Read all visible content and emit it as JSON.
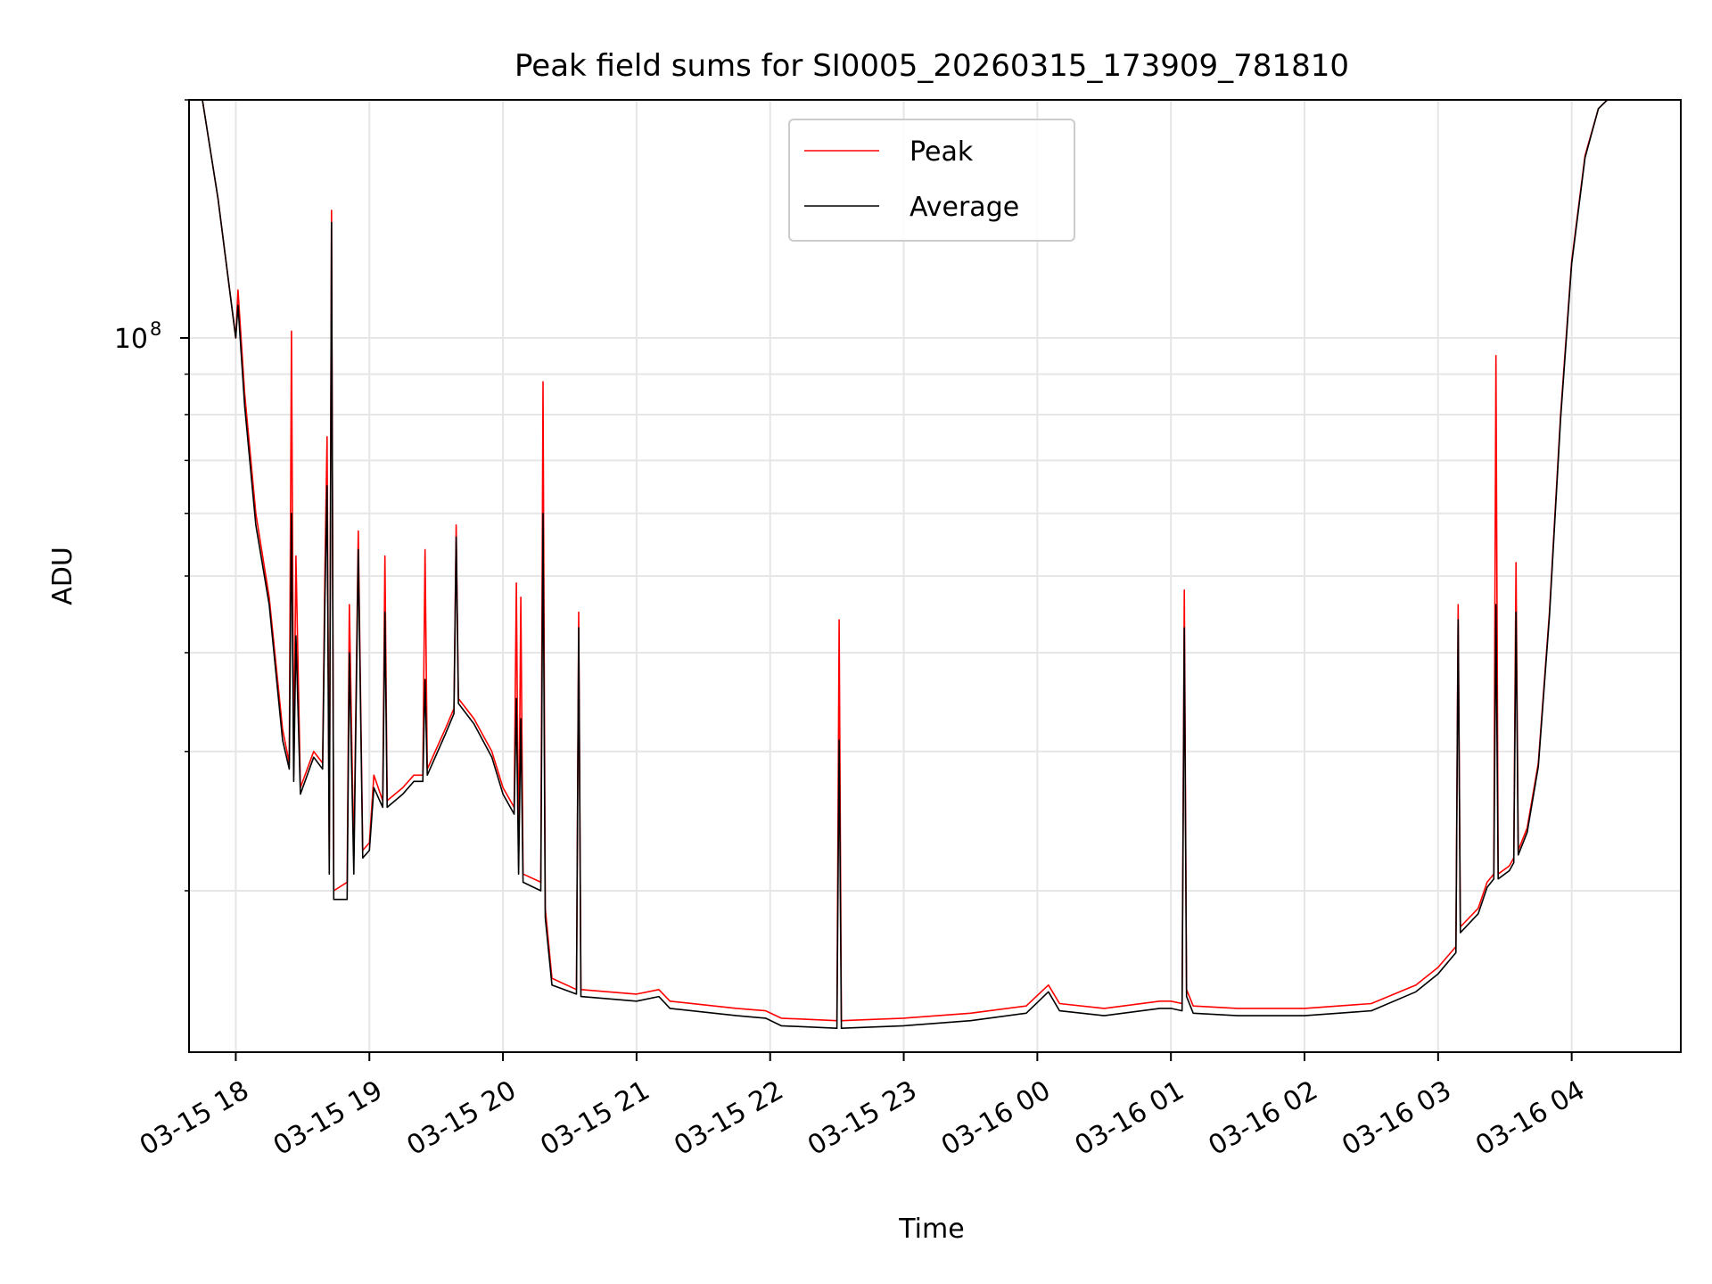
{
  "chart_data": {
    "type": "line",
    "title": "Peak field sums for SI0005_20260315_173909_781810",
    "xlabel": "Time",
    "ylabel": "ADU",
    "y_scale": "log",
    "ylim": [
      12500000,
      200000000
    ],
    "xlim": [
      "2026-03-15 17:39",
      "2026-03-16 04:49"
    ],
    "grid": true,
    "legend_position": "top-center",
    "x_ticks": [
      {
        "t": "2026-03-15 18:00",
        "label": "03-15 18"
      },
      {
        "t": "2026-03-15 19:00",
        "label": "03-15 19"
      },
      {
        "t": "2026-03-15 20:00",
        "label": "03-15 20"
      },
      {
        "t": "2026-03-15 21:00",
        "label": "03-15 21"
      },
      {
        "t": "2026-03-15 22:00",
        "label": "03-15 22"
      },
      {
        "t": "2026-03-15 23:00",
        "label": "03-15 23"
      },
      {
        "t": "2026-03-16 00:00",
        "label": "03-16 00"
      },
      {
        "t": "2026-03-16 01:00",
        "label": "03-16 01"
      },
      {
        "t": "2026-03-16 02:00",
        "label": "03-16 02"
      },
      {
        "t": "2026-03-16 03:00",
        "label": "03-16 03"
      },
      {
        "t": "2026-03-16 04:00",
        "label": "03-16 04"
      }
    ],
    "y_ticks": [
      {
        "value": 100000000,
        "label": "10",
        "exponent": "8"
      }
    ],
    "series": [
      {
        "name": "Peak",
        "color": "#ff0000",
        "points": [
          [
            "2026-03-15 17:45",
            200000000
          ],
          [
            "2026-03-15 17:52",
            150000000
          ],
          [
            "2026-03-15 18:00",
            100000000
          ],
          [
            "2026-03-15 18:01",
            115000000
          ],
          [
            "2026-03-15 18:04",
            85000000
          ],
          [
            "2026-03-15 18:09",
            60000000
          ],
          [
            "2026-03-15 18:15",
            47000000
          ],
          [
            "2026-03-15 18:21",
            32000000
          ],
          [
            "2026-03-15 18:24",
            29000000
          ],
          [
            "2026-03-15 18:25",
            102000000
          ],
          [
            "2026-03-15 18:26",
            28000000
          ],
          [
            "2026-03-15 18:27",
            53000000
          ],
          [
            "2026-03-15 18:29",
            27000000
          ],
          [
            "2026-03-15 18:35",
            30000000
          ],
          [
            "2026-03-15 18:39",
            29000000
          ],
          [
            "2026-03-15 18:40",
            50000000
          ],
          [
            "2026-03-15 18:41",
            75000000
          ],
          [
            "2026-03-15 18:42",
            22000000
          ],
          [
            "2026-03-15 18:43",
            145000000
          ],
          [
            "2026-03-15 18:44",
            20000000
          ],
          [
            "2026-03-15 18:50",
            20500000
          ],
          [
            "2026-03-15 18:51",
            46000000
          ],
          [
            "2026-03-15 18:53",
            22000000
          ],
          [
            "2026-03-15 18:55",
            57000000
          ],
          [
            "2026-03-15 18:57",
            22500000
          ],
          [
            "2026-03-15 19:00",
            23000000
          ],
          [
            "2026-03-15 19:02",
            28000000
          ],
          [
            "2026-03-15 19:06",
            26000000
          ],
          [
            "2026-03-15 19:07",
            53000000
          ],
          [
            "2026-03-15 19:08",
            26000000
          ],
          [
            "2026-03-15 19:15",
            27000000
          ],
          [
            "2026-03-15 19:20",
            28000000
          ],
          [
            "2026-03-15 19:24",
            28000000
          ],
          [
            "2026-03-15 19:25",
            54000000
          ],
          [
            "2026-03-15 19:26",
            28500000
          ],
          [
            "2026-03-15 19:34",
            32000000
          ],
          [
            "2026-03-15 19:38",
            34000000
          ],
          [
            "2026-03-15 19:39",
            58000000
          ],
          [
            "2026-03-15 19:40",
            35000000
          ],
          [
            "2026-03-15 19:47",
            33000000
          ],
          [
            "2026-03-15 19:55",
            30000000
          ],
          [
            "2026-03-15 20:00",
            27000000
          ],
          [
            "2026-03-15 20:05",
            25500000
          ],
          [
            "2026-03-15 20:06",
            49000000
          ],
          [
            "2026-03-15 20:07",
            21500000
          ],
          [
            "2026-03-15 20:08",
            47000000
          ],
          [
            "2026-03-15 20:09",
            21000000
          ],
          [
            "2026-03-15 20:17",
            20500000
          ],
          [
            "2026-03-15 20:18",
            88000000
          ],
          [
            "2026-03-15 20:19",
            19000000
          ],
          [
            "2026-03-15 20:22",
            15500000
          ],
          [
            "2026-03-15 20:33",
            15000000
          ],
          [
            "2026-03-15 20:34",
            45000000
          ],
          [
            "2026-03-15 20:35",
            15000000
          ],
          [
            "2026-03-15 21:00",
            14800000
          ],
          [
            "2026-03-15 21:10",
            15000000
          ],
          [
            "2026-03-15 21:15",
            14500000
          ],
          [
            "2026-03-15 21:45",
            14200000
          ],
          [
            "2026-03-15 21:58",
            14100000
          ],
          [
            "2026-03-15 22:05",
            13800000
          ],
          [
            "2026-03-15 22:30",
            13700000
          ],
          [
            "2026-03-15 22:31",
            44000000
          ],
          [
            "2026-03-15 22:32",
            13700000
          ],
          [
            "2026-03-15 23:00",
            13800000
          ],
          [
            "2026-03-15 23:30",
            14000000
          ],
          [
            "2026-03-15 23:55",
            14300000
          ],
          [
            "2026-03-16 00:05",
            15200000
          ],
          [
            "2026-03-16 00:10",
            14400000
          ],
          [
            "2026-03-16 00:30",
            14200000
          ],
          [
            "2026-03-16 00:55",
            14500000
          ],
          [
            "2026-03-16 01:00",
            14500000
          ],
          [
            "2026-03-16 01:05",
            14400000
          ],
          [
            "2026-03-16 01:06",
            48000000
          ],
          [
            "2026-03-16 01:07",
            15000000
          ],
          [
            "2026-03-16 01:10",
            14300000
          ],
          [
            "2026-03-16 01:30",
            14200000
          ],
          [
            "2026-03-16 02:00",
            14200000
          ],
          [
            "2026-03-16 02:30",
            14400000
          ],
          [
            "2026-03-16 02:50",
            15200000
          ],
          [
            "2026-03-16 03:00",
            16000000
          ],
          [
            "2026-03-16 03:08",
            17000000
          ],
          [
            "2026-03-16 03:09",
            46000000
          ],
          [
            "2026-03-16 03:10",
            18000000
          ],
          [
            "2026-03-16 03:18",
            19000000
          ],
          [
            "2026-03-16 03:22",
            20500000
          ],
          [
            "2026-03-16 03:25",
            21000000
          ],
          [
            "2026-03-16 03:26",
            95000000
          ],
          [
            "2026-03-16 03:27",
            21000000
          ],
          [
            "2026-03-16 03:32",
            21500000
          ],
          [
            "2026-03-16 03:34",
            22000000
          ],
          [
            "2026-03-16 03:35",
            52000000
          ],
          [
            "2026-03-16 03:36",
            22500000
          ],
          [
            "2026-03-16 03:40",
            24000000
          ],
          [
            "2026-03-16 03:45",
            29000000
          ],
          [
            "2026-03-16 03:50",
            45000000
          ],
          [
            "2026-03-16 03:55",
            80000000
          ],
          [
            "2026-03-16 04:00",
            125000000
          ],
          [
            "2026-03-16 04:06",
            170000000
          ],
          [
            "2026-03-16 04:12",
            195000000
          ],
          [
            "2026-03-16 04:16",
            200000000
          ],
          [
            "2026-03-16 04:49",
            200000000
          ]
        ]
      },
      {
        "name": "Average",
        "color": "#000000",
        "points": [
          [
            "2026-03-15 17:45",
            200000000
          ],
          [
            "2026-03-15 17:52",
            150000000
          ],
          [
            "2026-03-15 18:00",
            100000000
          ],
          [
            "2026-03-15 18:01",
            110000000
          ],
          [
            "2026-03-15 18:04",
            82000000
          ],
          [
            "2026-03-15 18:09",
            58000000
          ],
          [
            "2026-03-15 18:15",
            46000000
          ],
          [
            "2026-03-15 18:21",
            31000000
          ],
          [
            "2026-03-15 18:24",
            28500000
          ],
          [
            "2026-03-15 18:25",
            60000000
          ],
          [
            "2026-03-15 18:26",
            27500000
          ],
          [
            "2026-03-15 18:27",
            42000000
          ],
          [
            "2026-03-15 18:29",
            26500000
          ],
          [
            "2026-03-15 18:35",
            29500000
          ],
          [
            "2026-03-15 18:39",
            28500000
          ],
          [
            "2026-03-15 18:40",
            46000000
          ],
          [
            "2026-03-15 18:41",
            65000000
          ],
          [
            "2026-03-15 18:42",
            21000000
          ],
          [
            "2026-03-15 18:43",
            140000000
          ],
          [
            "2026-03-15 18:44",
            19500000
          ],
          [
            "2026-03-15 18:50",
            19500000
          ],
          [
            "2026-03-15 18:51",
            40000000
          ],
          [
            "2026-03-15 18:53",
            21000000
          ],
          [
            "2026-03-15 18:55",
            54000000
          ],
          [
            "2026-03-15 18:57",
            22000000
          ],
          [
            "2026-03-15 19:00",
            22500000
          ],
          [
            "2026-03-15 19:02",
            27000000
          ],
          [
            "2026-03-15 19:06",
            25500000
          ],
          [
            "2026-03-15 19:07",
            45000000
          ],
          [
            "2026-03-15 19:08",
            25500000
          ],
          [
            "2026-03-15 19:15",
            26500000
          ],
          [
            "2026-03-15 19:20",
            27500000
          ],
          [
            "2026-03-15 19:24",
            27500000
          ],
          [
            "2026-03-15 19:25",
            37000000
          ],
          [
            "2026-03-15 19:26",
            28000000
          ],
          [
            "2026-03-15 19:34",
            31500000
          ],
          [
            "2026-03-15 19:38",
            33500000
          ],
          [
            "2026-03-15 19:39",
            56000000
          ],
          [
            "2026-03-15 19:40",
            34500000
          ],
          [
            "2026-03-15 19:47",
            32500000
          ],
          [
            "2026-03-15 19:55",
            29500000
          ],
          [
            "2026-03-15 20:00",
            26500000
          ],
          [
            "2026-03-15 20:05",
            25000000
          ],
          [
            "2026-03-15 20:06",
            35000000
          ],
          [
            "2026-03-15 20:07",
            21000000
          ],
          [
            "2026-03-15 20:08",
            33000000
          ],
          [
            "2026-03-15 20:09",
            20500000
          ],
          [
            "2026-03-15 20:17",
            20000000
          ],
          [
            "2026-03-15 20:18",
            60000000
          ],
          [
            "2026-03-15 20:19",
            18500000
          ],
          [
            "2026-03-15 20:22",
            15200000
          ],
          [
            "2026-03-15 20:33",
            14800000
          ],
          [
            "2026-03-15 20:34",
            43000000
          ],
          [
            "2026-03-15 20:35",
            14700000
          ],
          [
            "2026-03-15 21:00",
            14500000
          ],
          [
            "2026-03-15 21:10",
            14700000
          ],
          [
            "2026-03-15 21:15",
            14200000
          ],
          [
            "2026-03-15 21:45",
            13900000
          ],
          [
            "2026-03-15 21:58",
            13800000
          ],
          [
            "2026-03-15 22:05",
            13500000
          ],
          [
            "2026-03-15 22:30",
            13400000
          ],
          [
            "2026-03-15 22:31",
            31000000
          ],
          [
            "2026-03-15 22:32",
            13400000
          ],
          [
            "2026-03-15 23:00",
            13500000
          ],
          [
            "2026-03-15 23:30",
            13700000
          ],
          [
            "2026-03-15 23:55",
            14000000
          ],
          [
            "2026-03-16 00:05",
            14900000
          ],
          [
            "2026-03-16 00:10",
            14100000
          ],
          [
            "2026-03-16 00:30",
            13900000
          ],
          [
            "2026-03-16 00:55",
            14200000
          ],
          [
            "2026-03-16 01:00",
            14200000
          ],
          [
            "2026-03-16 01:05",
            14100000
          ],
          [
            "2026-03-16 01:06",
            43000000
          ],
          [
            "2026-03-16 01:07",
            14700000
          ],
          [
            "2026-03-16 01:10",
            14000000
          ],
          [
            "2026-03-16 01:30",
            13900000
          ],
          [
            "2026-03-16 02:00",
            13900000
          ],
          [
            "2026-03-16 02:30",
            14100000
          ],
          [
            "2026-03-16 02:50",
            14900000
          ],
          [
            "2026-03-16 03:00",
            15700000
          ],
          [
            "2026-03-16 03:08",
            16700000
          ],
          [
            "2026-03-16 03:09",
            44000000
          ],
          [
            "2026-03-16 03:10",
            17700000
          ],
          [
            "2026-03-16 03:18",
            18700000
          ],
          [
            "2026-03-16 03:22",
            20200000
          ],
          [
            "2026-03-16 03:25",
            20700000
          ],
          [
            "2026-03-16 03:26",
            46000000
          ],
          [
            "2026-03-16 03:27",
            20700000
          ],
          [
            "2026-03-16 03:32",
            21200000
          ],
          [
            "2026-03-16 03:34",
            21700000
          ],
          [
            "2026-03-16 03:35",
            45000000
          ],
          [
            "2026-03-16 03:36",
            22200000
          ],
          [
            "2026-03-16 03:40",
            23700000
          ],
          [
            "2026-03-16 03:45",
            28700000
          ],
          [
            "2026-03-16 03:50",
            44500000
          ],
          [
            "2026-03-16 03:55",
            79000000
          ],
          [
            "2026-03-16 04:00",
            124000000
          ],
          [
            "2026-03-16 04:06",
            169000000
          ],
          [
            "2026-03-16 04:12",
            195000000
          ],
          [
            "2026-03-16 04:16",
            200000000
          ],
          [
            "2026-03-16 04:49",
            200000000
          ]
        ]
      }
    ]
  }
}
